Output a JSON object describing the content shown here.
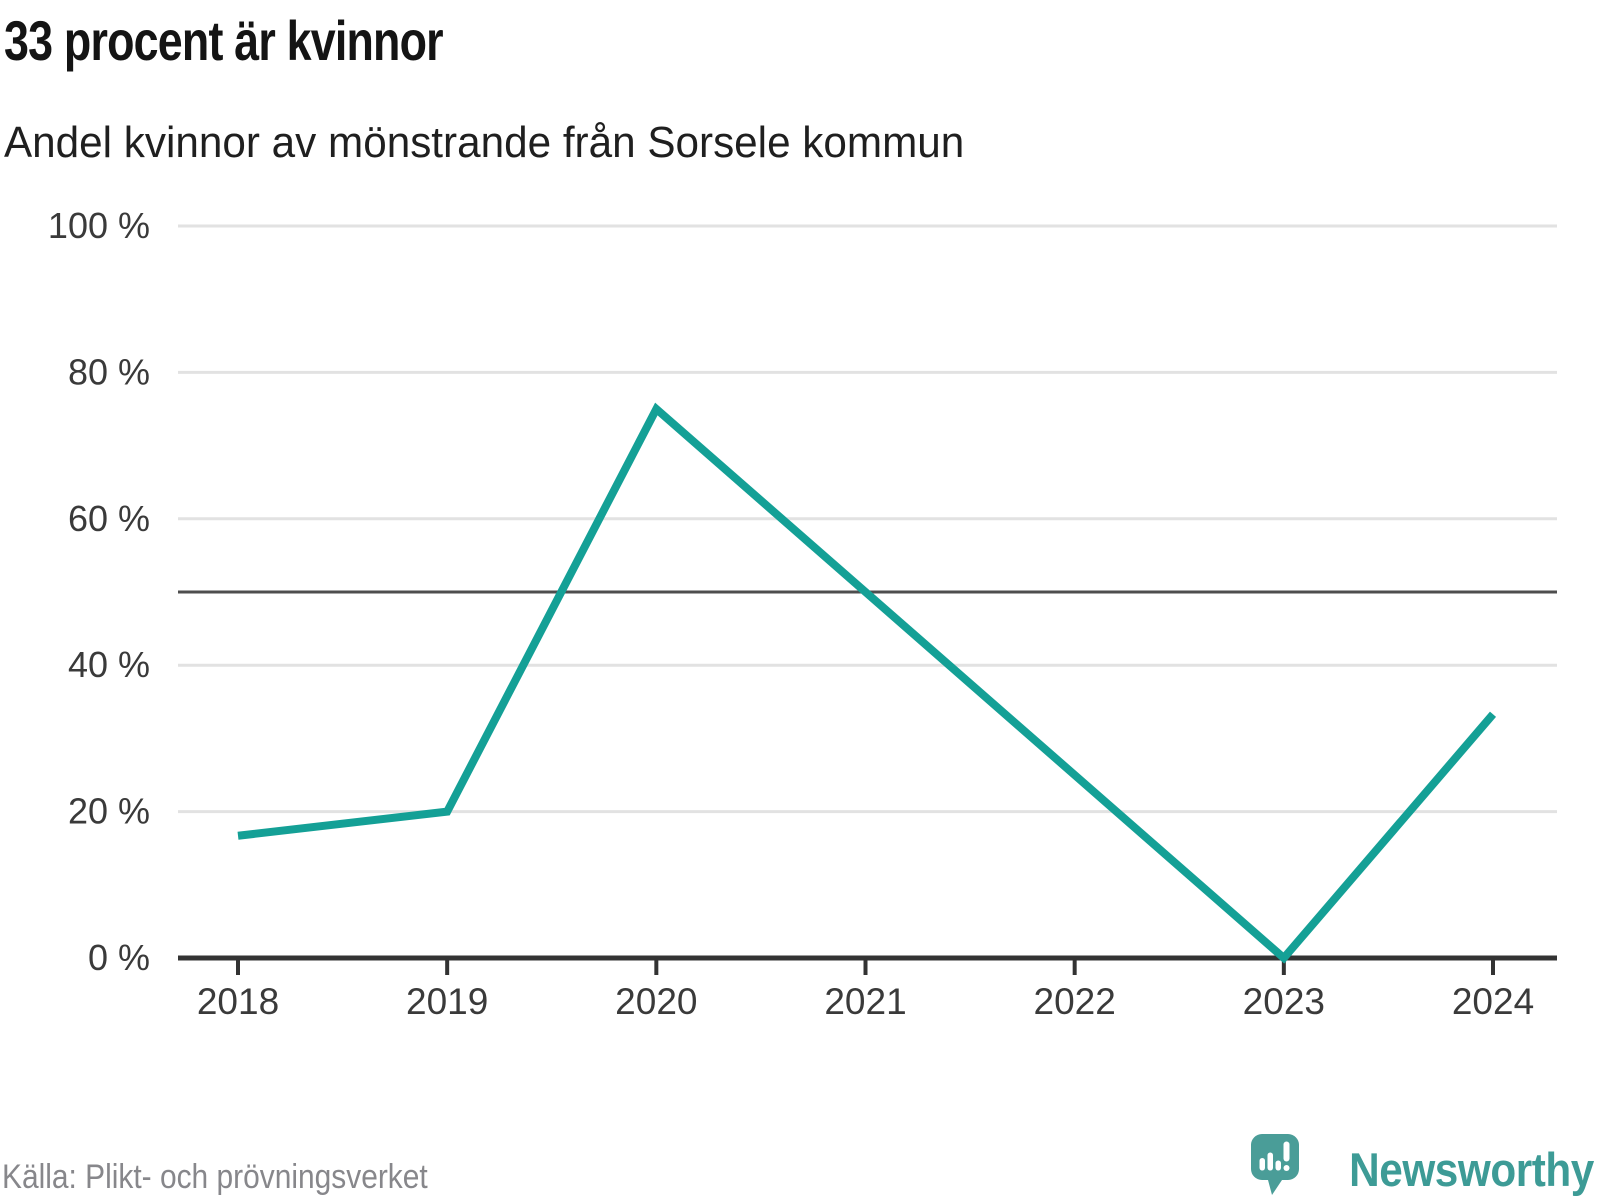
{
  "header": {
    "title": "33 procent är kvinnor",
    "subtitle": "Andel kvinnor av mönstrande från Sorsele kommun"
  },
  "footer": {
    "source": "Källa: Plikt- och prövningsverket",
    "brand": "Newsworthy"
  },
  "colors": {
    "line": "#14a096",
    "brand_teal": "#4a9d98",
    "brand_text": "#3d9b96",
    "gridline": "#e2e2e2",
    "reference_line": "#4e4e4e",
    "axis": "#333333",
    "tick_label": "#3a3a3a"
  },
  "chart_data": {
    "type": "line",
    "title": "33 procent är kvinnor",
    "subtitle": "Andel kvinnor av mönstrande från Sorsele kommun",
    "x": [
      2018,
      2019,
      2020,
      2021,
      2022,
      2023,
      2024
    ],
    "series": [
      {
        "name": "Andel kvinnor av mönstrande",
        "values": [
          16.7,
          20,
          75,
          50,
          25,
          0,
          33.3
        ]
      }
    ],
    "xlabel": "",
    "ylabel": "",
    "ylim": [
      0,
      100
    ],
    "yticks": [
      0,
      20,
      40,
      60,
      80,
      100
    ],
    "ytick_suffix": " %",
    "reference_line": 50,
    "grid": "horizontal",
    "legend": "none",
    "source": "Källa: Plikt- och prövningsverket"
  }
}
